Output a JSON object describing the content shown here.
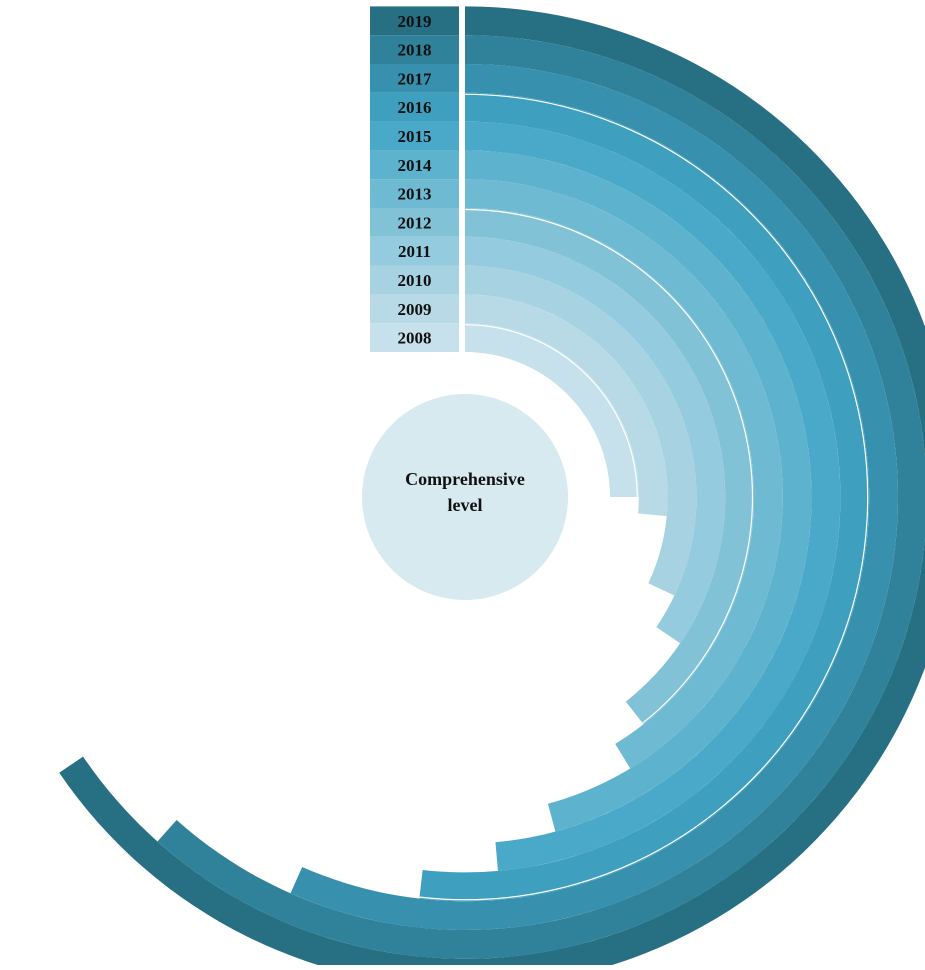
{
  "chart_data": {
    "type": "radial-bar",
    "center_label_lines": [
      "Comprehensive",
      "level"
    ],
    "categories": [
      "2008",
      "2009",
      "2010",
      "2011",
      "2012",
      "2013",
      "2014",
      "2015",
      "2016",
      "2017",
      "2018",
      "2019"
    ],
    "values": [
      0.25,
      0.265,
      0.32,
      0.345,
      0.394,
      0.413,
      0.458,
      0.486,
      0.518,
      0.566,
      0.616,
      0.655
    ],
    "value_scale_max": 1.0,
    "colors": [
      "#c6e1eb",
      "#b8dae6",
      "#a6d2e2",
      "#94cbde",
      "#82c2d7",
      "#6fbad3",
      "#5db2ce",
      "#4aa9c8",
      "#3f9fbe",
      "#3791ae",
      "#2f8299",
      "#276f82"
    ],
    "center_color": "#d6eaf0",
    "reference_rings_after": [
      "2008",
      "2012",
      "2016"
    ],
    "reference_ring_color": "#ffffff"
  }
}
